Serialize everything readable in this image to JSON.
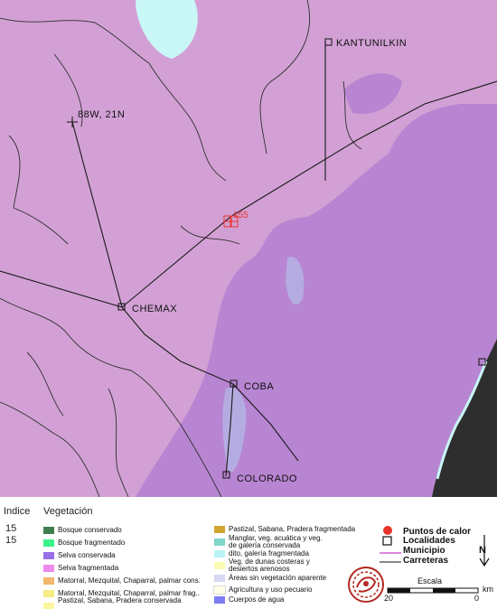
{
  "map": {
    "places": [
      {
        "name": "KANTUNILKIN"
      },
      {
        "name": "88W, 21N"
      },
      {
        "name": "CHEMAX"
      },
      {
        "name": "COBA"
      },
      {
        "name": "COLORADO"
      }
    ],
    "hotspot_label": "155",
    "colors": {
      "background": "#d3a0d5",
      "dense_forest": "#a26fd0",
      "water_wetland": "#c9f7f7",
      "coast": "#2e2e2e",
      "roads": "#1a1a1a",
      "hotspot": "#e8332a"
    }
  },
  "legend": {
    "indice_header": "Indice",
    "vegetacion_header": "Vegetación",
    "index_values": [
      "15",
      "15"
    ],
    "col1": [
      {
        "label": "Bosque conservado",
        "color": "#3f7d4f"
      },
      {
        "label": "Bosque fragmentado",
        "color": "#3cf28a"
      },
      {
        "label": "Selva conservada",
        "color": "#9a6ee6"
      },
      {
        "label": "Selva fragmentada",
        "color": "#f089ec"
      },
      {
        "label": "Matorral, Mezquital, Chaparral, palmar cons.",
        "color": "#f4b76e"
      },
      {
        "label": "Matorral, Mezquital, Chaparral, palmar frag..",
        "color": "#f5ec86"
      },
      {
        "label": "Pastizal, Sabana, Pradera conservada",
        "color": "#fbf59b"
      }
    ],
    "col2": [
      {
        "label": "Pastizal, Sabana, Pradera fragmentada",
        "color": "#d2a531"
      },
      {
        "label": "Manglar, veg. acuática y veg.",
        "color": "#7fd6c9"
      },
      {
        "label": "de galería conservada",
        "color": null
      },
      {
        "label": "dito, galería fragmentada",
        "color": "#b8f4f4"
      },
      {
        "label": "Veg. de dunas costeras y",
        "color": "#fbfbb4"
      },
      {
        "label": "desiertos arenosos",
        "color": null
      },
      {
        "label": "Áreas sin vegetación aparente",
        "color": "#d8d8f2"
      },
      {
        "label": "Agricultura y uso pecuario",
        "color": "#fdfde8"
      },
      {
        "label": "Cuerpos de agua",
        "color": "#7c7cf3"
      }
    ],
    "symbols": [
      {
        "label": "Puntos de calor",
        "icon": "red-dot-icon"
      },
      {
        "label": "Localidades",
        "icon": "square-icon"
      },
      {
        "label": "Municipio",
        "icon": "magenta-line-icon"
      },
      {
        "label": "Carreteras",
        "icon": "black-line-icon"
      }
    ],
    "north_label": "N",
    "scale": {
      "title": "Escala",
      "left": "20",
      "right": "0",
      "unit": "km"
    }
  }
}
